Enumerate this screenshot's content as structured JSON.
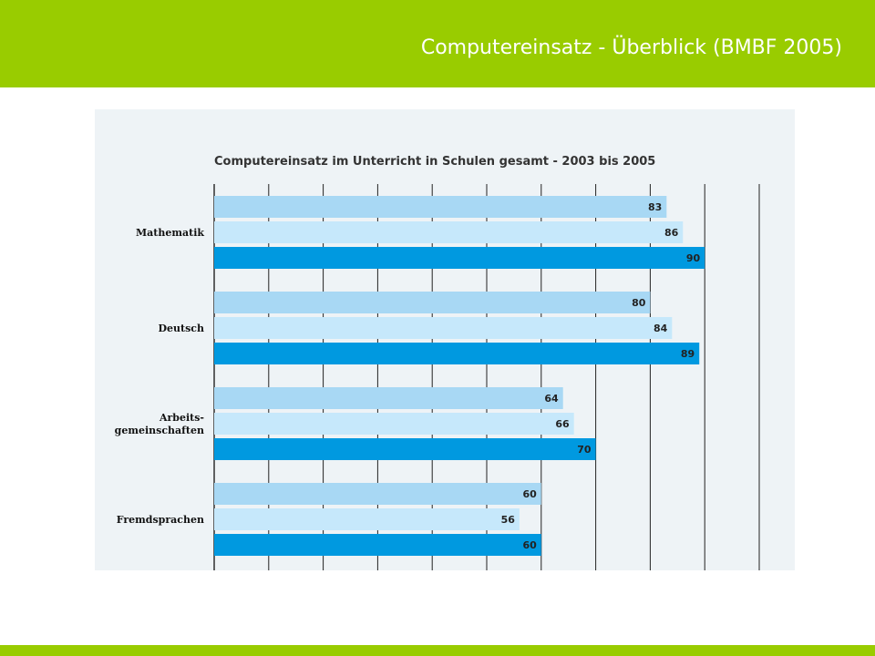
{
  "slide": {
    "title": "Computereinsatz - Überblick (BMBF 2005)"
  },
  "colors": {
    "header_green": "#99cc00",
    "panel_bg": "#eef3f6",
    "series": [
      "#a8d8f4",
      "#c6e8fb",
      "#0099e0"
    ],
    "grid": "#222222"
  },
  "chart_data": {
    "type": "bar",
    "orientation": "horizontal",
    "title": "Computereinsatz im Unterricht in Schulen gesamt - 2003 bis 2005",
    "categories": [
      {
        "lines": [
          "Mathematik"
        ]
      },
      {
        "lines": [
          "Deutsch"
        ]
      },
      {
        "lines": [
          "Arbeits-",
          "gemeinschaften"
        ]
      },
      {
        "lines": [
          "Fremdsprachen"
        ]
      }
    ],
    "series": [
      {
        "values": [
          83,
          80,
          64,
          60
        ]
      },
      {
        "values": [
          86,
          84,
          66,
          56
        ]
      },
      {
        "values": [
          90,
          89,
          70,
          60
        ]
      }
    ],
    "xlim": [
      0,
      100
    ],
    "grid_step": 10,
    "grid": true,
    "legend": "none"
  }
}
